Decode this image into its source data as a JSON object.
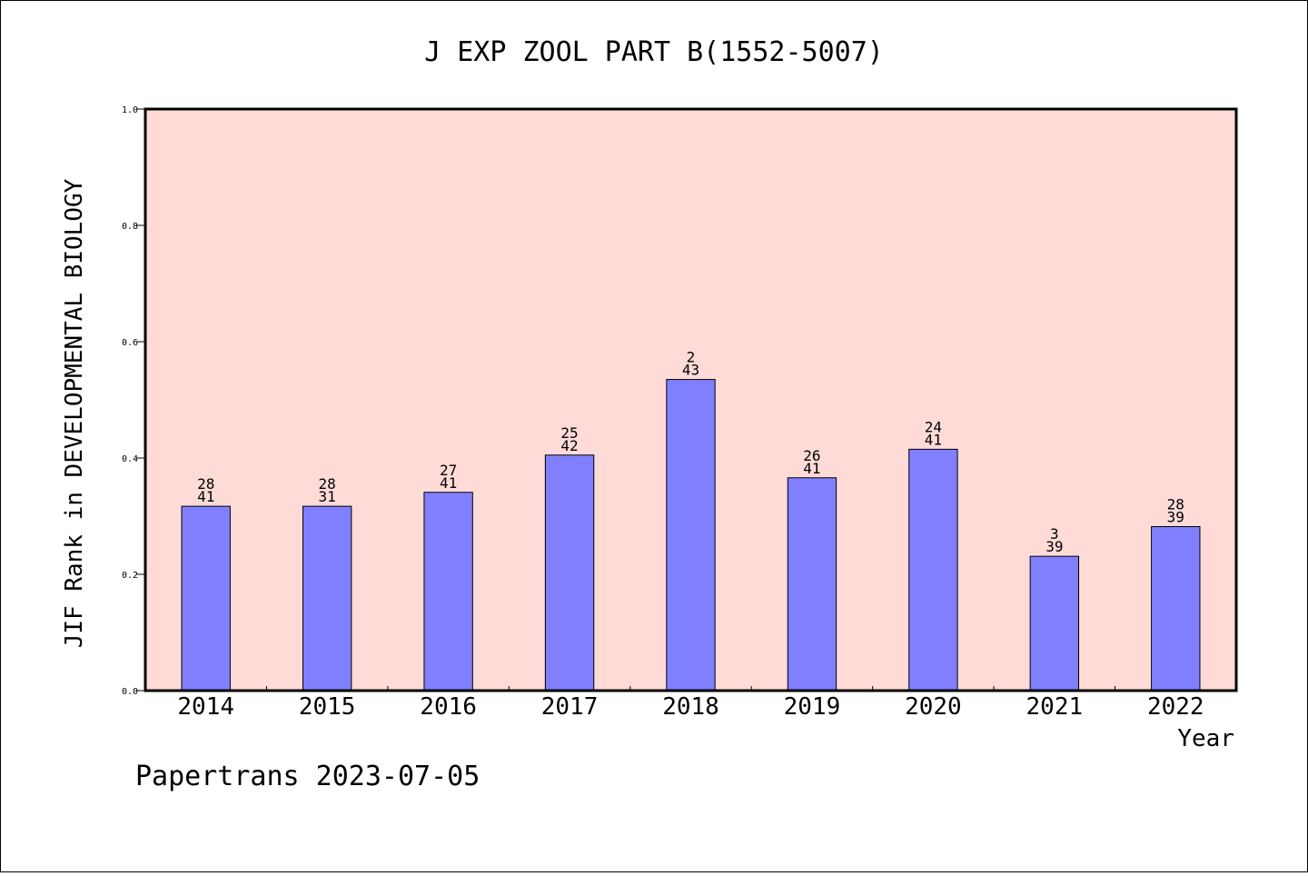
{
  "chart_data": {
    "type": "bar",
    "title": "J EXP ZOOL PART B(1552-5007)",
    "xlabel": "Year",
    "ylabel": "JIF Rank in DEVELOPMENTAL BIOLOGY",
    "ylim": [
      0,
      1.0
    ],
    "yticks": [
      "0.0",
      "0.2",
      "0.4",
      "0.6",
      "0.8",
      "1.0"
    ],
    "categories": [
      "2014",
      "2015",
      "2016",
      "2017",
      "2018",
      "2019",
      "2020",
      "2021",
      "2022"
    ],
    "values": [
      0.317,
      0.317,
      0.341,
      0.405,
      0.535,
      0.366,
      0.415,
      0.231,
      0.282
    ],
    "rank": [
      "28",
      "28",
      "27",
      "25",
      "2",
      "26",
      "24",
      "3",
      "28"
    ],
    "total": [
      "41",
      "31",
      "41",
      "42",
      "43",
      "41",
      "41",
      "39",
      "39"
    ],
    "grid": false,
    "colors": {
      "plot_background": "#FFDBD8",
      "bar_fill": "#8080FF",
      "bar_stroke": "#000000"
    }
  },
  "footer": "Papertrans 2023-07-05"
}
